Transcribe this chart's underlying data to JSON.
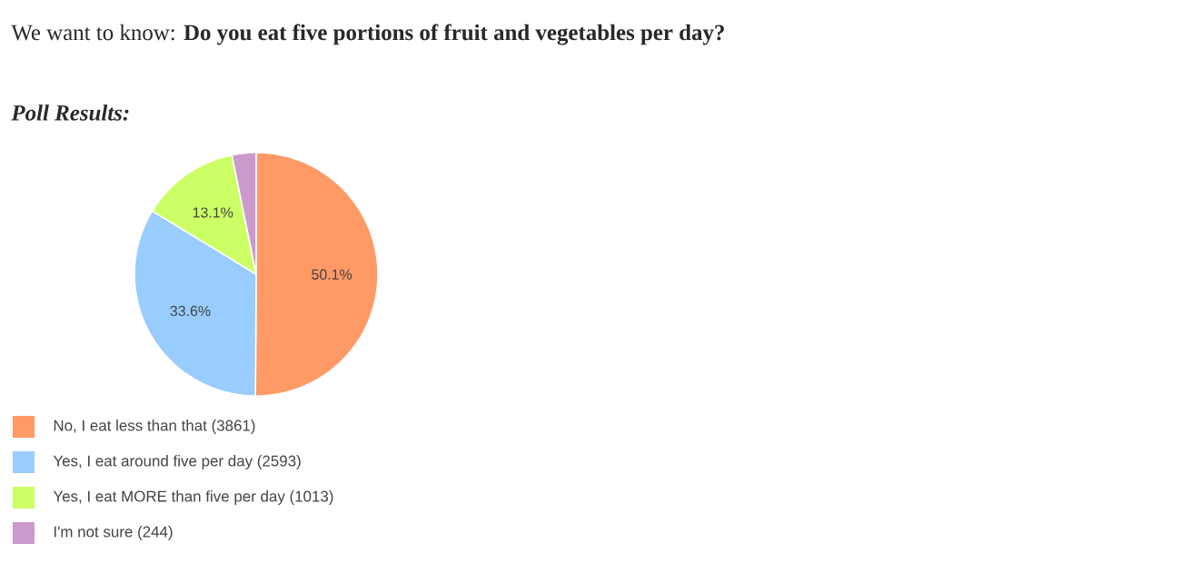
{
  "chart_data": {
    "type": "pie",
    "title": "We want to know: **Do you eat five portions of fruit and vegetables per day?**",
    "subtitle": "Poll Results:",
    "categories": [
      "No, I eat less than that (3861)",
      "Yes, I eat around five per day (2593)",
      "Yes, I eat MORE than five per day (1013)",
      "I'm not sure (244)"
    ],
    "values": [
      50.1,
      33.6,
      13.1,
      3.2
    ],
    "colors": [
      "#ff9966",
      "#99ccff",
      "#ccff66",
      "#cc99cc"
    ],
    "value_labels": [
      "50.1%",
      "33.6%",
      "13.1%",
      null
    ],
    "legend": "bottom"
  }
}
